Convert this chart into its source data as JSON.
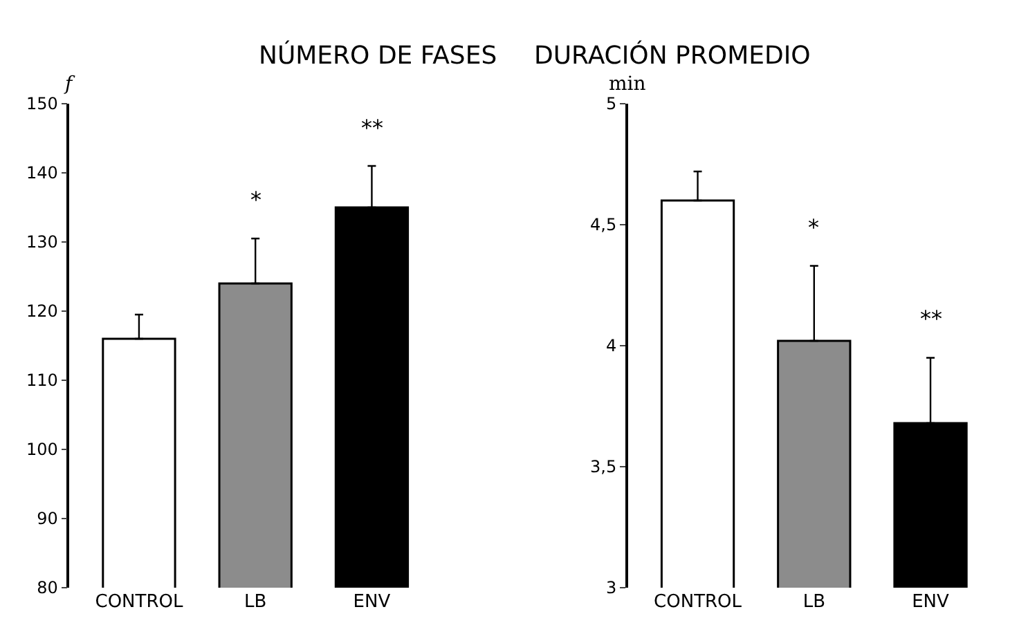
{
  "chart_data": [
    {
      "type": "bar",
      "title": "NÚMERO DE FASES",
      "ylabel": "f",
      "categories": [
        "CONTROL",
        "LB",
        "ENV"
      ],
      "values": [
        116,
        124,
        135
      ],
      "colors": [
        "#ffffff",
        "#8c8c8c",
        "#000000"
      ],
      "errors": [
        [
          116,
          119.5
        ],
        [
          124,
          130.5
        ],
        [
          135,
          141
        ]
      ],
      "ylim": [
        80,
        150
      ],
      "yticks": [
        80,
        90,
        100,
        110,
        120,
        130,
        140,
        150
      ],
      "annotations": [
        "*",
        "**"
      ]
    },
    {
      "type": "bar",
      "title": "DURACIÓN PROMEDIO",
      "ylabel": "min",
      "categories": [
        "CONTROL",
        "LB",
        "ENV"
      ],
      "values": [
        4.6,
        4.02,
        3.68
      ],
      "colors": [
        "#ffffff",
        "#8c8c8c",
        "#000000"
      ],
      "errors": [
        [
          4.6,
          4.72
        ],
        [
          4.02,
          4.33
        ],
        [
          3.68,
          3.95
        ]
      ],
      "ylim": [
        3,
        5
      ],
      "yticks": [
        3,
        {
          "value": 3.5,
          "label": "3,5"
        },
        4,
        {
          "value": 4.5,
          "label": "4,5"
        },
        5
      ],
      "annotations": [
        "*",
        "**"
      ]
    }
  ]
}
